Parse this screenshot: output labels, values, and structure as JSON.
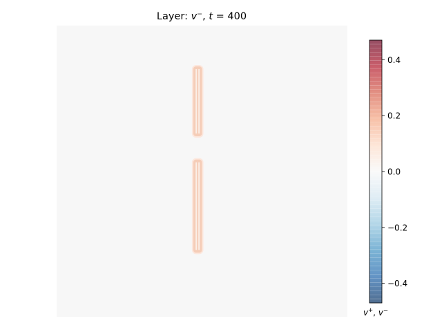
{
  "chart_data": {
    "type": "heatmap",
    "title": {
      "prefix": "Layer: ",
      "var": "v",
      "var_sup": "−",
      "mid": ", ",
      "t_var": "t",
      "eq": " = ",
      "t_value": "400"
    },
    "xlabel": "",
    "ylabel": "",
    "grid": false,
    "field_background_value": 0.0,
    "features": [
      {
        "name": "",
        "value": 0.12,
        "row_range": [
          0.14,
          0.38
        ],
        "col_range": [
          0.47,
          0.5
        ]
      },
      {
        "name": "",
        "value": 0.12,
        "row_range": [
          0.46,
          0.78
        ],
        "col_range": [
          0.47,
          0.5
        ]
      }
    ],
    "colorbar": {
      "colormap": "RdBu_r",
      "range": [
        -0.47,
        0.47
      ],
      "ticks": [
        0.4,
        0.2,
        0.0,
        -0.2,
        -0.4
      ],
      "tick_labels": [
        "0.4",
        "0.2",
        "0.0",
        "−0.2",
        "−0.4"
      ],
      "label": {
        "a": "v",
        "a_sup": "+",
        "sep": ", ",
        "b": "v",
        "b_sup": "−"
      }
    }
  }
}
